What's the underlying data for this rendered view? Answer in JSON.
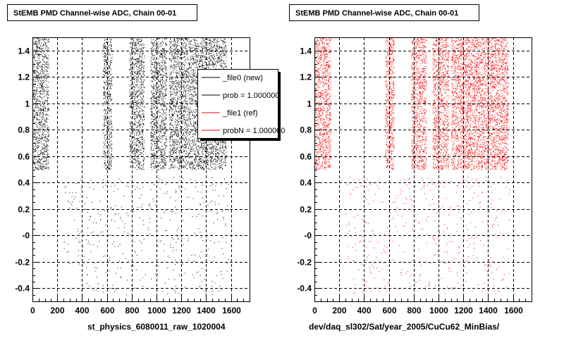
{
  "colors": {
    "file0": "#000000",
    "file1": "#ff0000",
    "grid": "#000000"
  },
  "chart_data": [
    {
      "type": "scatter",
      "title": "StEMB PMD Channel-wise ADC, Chain 00-01",
      "xlabel": "st_physics_6080011_raw_1020004",
      "ylabel": "",
      "xlim": [
        0,
        1750
      ],
      "ylim": [
        -0.5,
        1.5
      ],
      "xticks": [
        0,
        200,
        400,
        600,
        800,
        1000,
        1200,
        1400,
        1600
      ],
      "xtick_labels": [
        "0",
        "200",
        "400",
        "600",
        "800",
        "1000",
        "1200",
        "1400",
        "1600"
      ],
      "yticks": [
        -0.4,
        -0.2,
        0,
        0.2,
        0.4,
        0.6,
        0.8,
        1,
        1.2,
        1.4
      ],
      "ytick_labels": [
        "-0.4",
        "-0.2",
        "-0",
        "0.2",
        "0.4",
        "0.6",
        "0.8",
        "1",
        "1.2",
        "1.4"
      ],
      "grid": true,
      "series": [
        {
          "name": "_file0 (new)",
          "color": "#000000",
          "dense_bands": [
            [
              0,
              130
            ],
            [
              570,
              640
            ],
            [
              780,
              900
            ],
            [
              950,
              1080
            ],
            [
              1100,
              1560
            ]
          ],
          "dense_y": [
            0.5,
            1.5
          ],
          "sparse_y": [
            -0.45,
            0.45
          ]
        }
      ],
      "legend": {
        "position": "top-right",
        "entries": [
          {
            "label": "_file0 (new)",
            "color": "#000000"
          },
          {
            "label": "prob = 1.000000",
            "color": "#000000"
          },
          {
            "label": "_file1 (ref)",
            "color": "#ff0000"
          },
          {
            "label": "probN = 1.000000",
            "color": "#ff0000"
          }
        ]
      }
    },
    {
      "type": "scatter",
      "title": "StEMB PMD Channel-wise ADC, Chain 00-01",
      "xlabel": "dev/daq_sl302/Sat/year_2005/CuCu62_MinBias/",
      "ylabel": "",
      "xlim": [
        0,
        1750
      ],
      "ylim": [
        -0.5,
        1.5
      ],
      "xticks": [
        0,
        200,
        400,
        600,
        800,
        1000,
        1200,
        1400,
        1600
      ],
      "xtick_labels": [
        "0",
        "200",
        "400",
        "600",
        "800",
        "1000",
        "1200",
        "1400",
        "1600"
      ],
      "yticks": [
        -0.4,
        -0.2,
        0,
        0.2,
        0.4,
        0.6,
        0.8,
        1,
        1.2,
        1.4
      ],
      "ytick_labels": [
        "-0.4",
        "-0.2",
        "-0",
        "0.2",
        "0.4",
        "0.6",
        "0.8",
        "1",
        "1.2",
        "1.4"
      ],
      "grid": true,
      "series": [
        {
          "name": "_file1 (ref)",
          "color": "#ff0000",
          "dense_bands": [
            [
              0,
              130
            ],
            [
              570,
              640
            ],
            [
              780,
              900
            ],
            [
              950,
              1080
            ],
            [
              1100,
              1560
            ]
          ],
          "dense_y": [
            0.5,
            1.5
          ],
          "sparse_y": [
            -0.45,
            0.45
          ]
        }
      ]
    }
  ]
}
